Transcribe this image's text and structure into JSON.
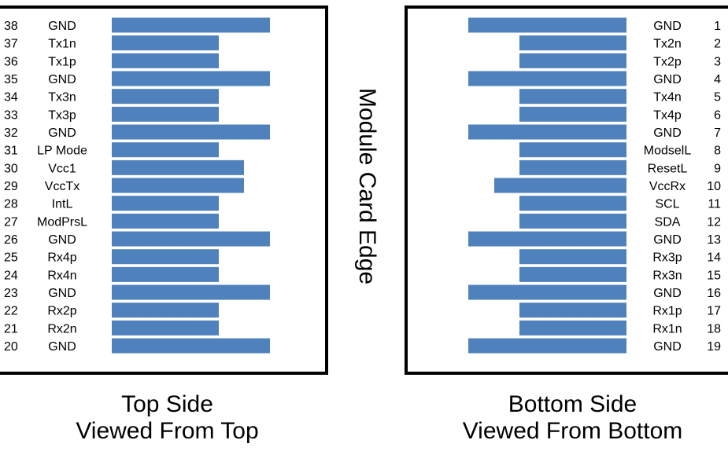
{
  "edge_label": "Module Card Edge",
  "bar_color": "#4f81bd",
  "top_side": {
    "caption_line1": "Top Side",
    "caption_line2": "Viewed From Top",
    "pins": [
      {
        "number": "38",
        "label": "GND",
        "length": "long"
      },
      {
        "number": "37",
        "label": "Tx1n",
        "length": "short"
      },
      {
        "number": "36",
        "label": "Tx1p",
        "length": "short"
      },
      {
        "number": "35",
        "label": "GND",
        "length": "long"
      },
      {
        "number": "34",
        "label": "Tx3n",
        "length": "short"
      },
      {
        "number": "33",
        "label": "Tx3p",
        "length": "short"
      },
      {
        "number": "32",
        "label": "GND",
        "length": "long"
      },
      {
        "number": "31",
        "label": "LP Mode",
        "length": "short"
      },
      {
        "number": "30",
        "label": "Vcc1",
        "length": "medium"
      },
      {
        "number": "29",
        "label": "VccTx",
        "length": "medium"
      },
      {
        "number": "28",
        "label": "IntL",
        "length": "short"
      },
      {
        "number": "27",
        "label": "ModPrsL",
        "length": "short"
      },
      {
        "number": "26",
        "label": "GND",
        "length": "long"
      },
      {
        "number": "25",
        "label": "Rx4p",
        "length": "short"
      },
      {
        "number": "24",
        "label": "Rx4n",
        "length": "short"
      },
      {
        "number": "23",
        "label": "GND",
        "length": "long"
      },
      {
        "number": "22",
        "label": "Rx2p",
        "length": "short"
      },
      {
        "number": "21",
        "label": "Rx2n",
        "length": "short"
      },
      {
        "number": "20",
        "label": "GND",
        "length": "long"
      }
    ]
  },
  "bottom_side": {
    "caption_line1": "Bottom Side",
    "caption_line2": "Viewed From Bottom",
    "pins": [
      {
        "number": "1",
        "label": "GND",
        "length": "long"
      },
      {
        "number": "2",
        "label": "Tx2n",
        "length": "short"
      },
      {
        "number": "3",
        "label": "Tx2p",
        "length": "short"
      },
      {
        "number": "4",
        "label": "GND",
        "length": "long"
      },
      {
        "number": "5",
        "label": "Tx4n",
        "length": "short"
      },
      {
        "number": "6",
        "label": "Tx4p",
        "length": "short"
      },
      {
        "number": "7",
        "label": "GND",
        "length": "long"
      },
      {
        "number": "8",
        "label": "ModselL",
        "length": "short"
      },
      {
        "number": "9",
        "label": "ResetL",
        "length": "short"
      },
      {
        "number": "10",
        "label": "VccRx",
        "length": "medium"
      },
      {
        "number": "11",
        "label": "SCL",
        "length": "short"
      },
      {
        "number": "12",
        "label": "SDA",
        "length": "short"
      },
      {
        "number": "13",
        "label": "GND",
        "length": "long"
      },
      {
        "number": "14",
        "label": "Rx3p",
        "length": "short"
      },
      {
        "number": "15",
        "label": "Rx3n",
        "length": "short"
      },
      {
        "number": "16",
        "label": "GND",
        "length": "long"
      },
      {
        "number": "17",
        "label": "Rx1p",
        "length": "short"
      },
      {
        "number": "18",
        "label": "Rx1n",
        "length": "short"
      },
      {
        "number": "19",
        "label": "GND",
        "length": "long"
      }
    ]
  }
}
